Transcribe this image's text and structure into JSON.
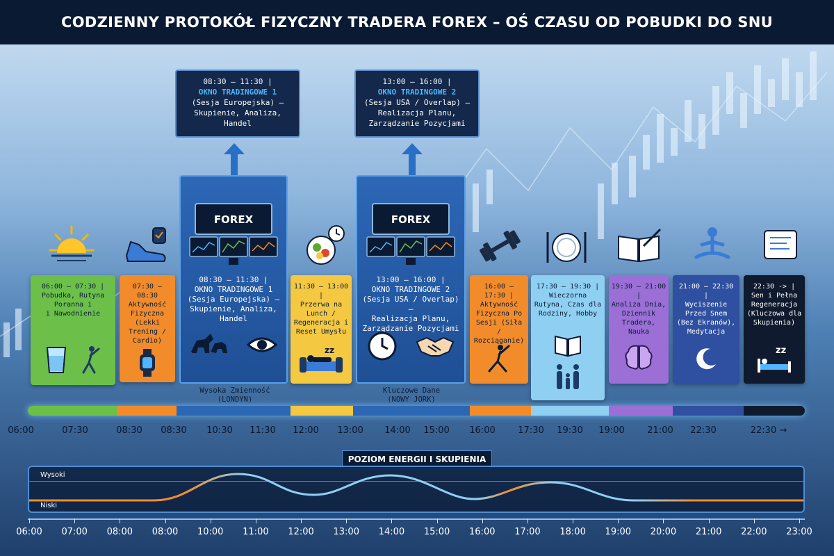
{
  "title": "CODZIENNY PROTOKÓŁ FIZYCZNY TRADERA FOREX – OŚ CZASU OD POBUDKI DO SNU",
  "callouts": [
    {
      "time": "08:30 – 11:30 |",
      "name": "OKNO TRADINGOWE 1",
      "desc1": "(Sesja Europejska) –",
      "desc2": "Skupienie, Analiza,",
      "desc3": "Handel"
    },
    {
      "time": "13:00 – 16:00 |",
      "name": "OKNO TRADINGOWE 2",
      "desc1": "(Sesja USA / Overlap) –",
      "desc2": "Realizacja Planu,",
      "desc3": "Zarządzanie Pozycjami"
    }
  ],
  "cards": [
    {
      "l1": "06:00 – 07:30 |",
      "l2": "Pobudka, Rutyna",
      "l3": "Poranna i",
      "l4": "i Nawodnienie",
      "color": "#6cc04a"
    },
    {
      "l1": "07:30 – 08:30",
      "l2": "Aktywność",
      "l3": "Fizyczna",
      "l4": "(Lekki",
      "l5": "Trening /",
      "l6": "Cardio)",
      "color": "#f28c2a"
    },
    {
      "l1": "08:30 – 11:30 |",
      "l2": "OKNO TRADINGOWE 1",
      "l3": "(Sesja Europejska) –",
      "l4": "Skupienie, Analiza,",
      "l5": "Handel"
    },
    {
      "l1": "11:30 – 13:00 |",
      "l2": "Przerwa na",
      "l3": "Lunch /",
      "l4": "Regeneracja i",
      "l5": "Reset Umysłu",
      "color": "#f5c842"
    },
    {
      "l1": "13:00 – 16:00 |",
      "l2": "OKNO TRADINGOWE 2",
      "l3": "(Sesja USA / Overlap) –",
      "l4": "Realizacja Planu,",
      "l5": "Zarządzanie Pozycjami"
    },
    {
      "l1": "16:00 – 17:30 |",
      "l2": "Aktywność",
      "l3": "Fizyczna Po",
      "l4": "Sesji (Siła /",
      "l5": "Rozciąganie)",
      "color": "#f28c2a"
    },
    {
      "l1": "17:30 – 19:30 |",
      "l2": "Wieczorna",
      "l3": "Rutyna, Czas dla",
      "l4": "Rodziny, Hobby",
      "color": "#8fd0f2"
    },
    {
      "l1": "19:30 – 21:00 |",
      "l2": "Analiza Dnia,",
      "l3": "Dziennik",
      "l4": "Tradera,",
      "l5": "Nauka",
      "color": "#9b6fd6"
    },
    {
      "l1": "21:00 – 22:30 |",
      "l2": "Wyciszenie",
      "l3": "Przed Snem",
      "l4": "(Bez Ekranów),",
      "l5": "Medytacja",
      "color": "#2f4fa0"
    },
    {
      "l1": "22:30 -> |",
      "l2": "Sen i Pełna",
      "l3": "Regeneracja",
      "l4": "(Kluczowa dla",
      "l5": "Skupienia)",
      "color": "#0f1a2e"
    }
  ],
  "forex_label": "FOREX",
  "sublabels": [
    {
      "l1": "Wysoka Zmienność",
      "l2": "(LONDYN)"
    },
    {
      "l1": "Kluczowe Dane",
      "l2": "(NOWY JORK)"
    }
  ],
  "timeline_ticks": [
    "06:00",
    "07:30",
    "08:30",
    "08:30",
    "10:30",
    "11:30",
    "12:00",
    "13:00",
    "14:00",
    "15:00",
    "16:00",
    "17:30",
    "19:30",
    "19:00",
    "21:00",
    "22:30",
    "22:30 →"
  ],
  "energy": {
    "title": "POZIOM ENERGII I SKUPIENIA",
    "high_label": "Wysoki",
    "low_label": "Niski"
  },
  "hours": [
    "06:00",
    "07:00",
    "08:00",
    "08:00",
    "10:00",
    "11:00",
    "12:00",
    "13:00",
    "14:00",
    "15:00",
    "16:00",
    "17:00",
    "18:00",
    "19:00",
    "20:00",
    "21:00",
    "22:00",
    "23:00"
  ],
  "colors": {
    "green": "#6cc04a",
    "orange": "#f28c2a",
    "blue": "#2c67b6",
    "yellow": "#f5c842",
    "light_blue": "#8fd0f2",
    "purple": "#9b6fd6",
    "navy": "#2f4fa0",
    "dark": "#0f1a2e"
  }
}
